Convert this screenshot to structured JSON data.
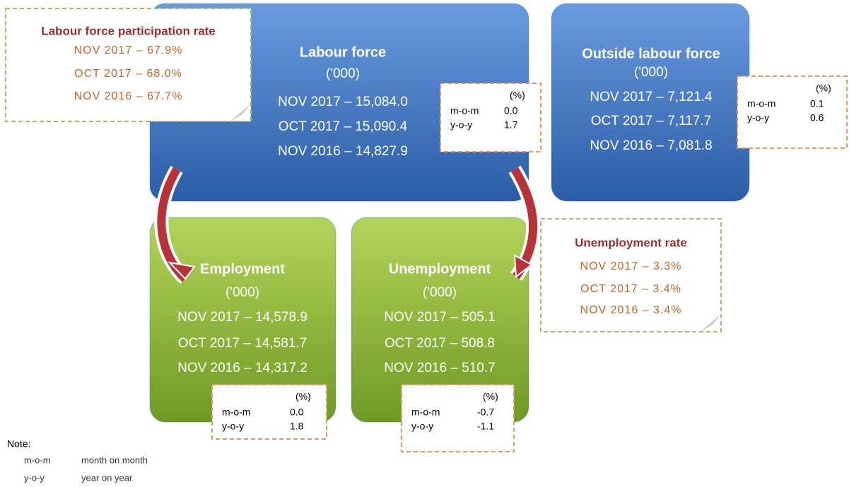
{
  "participation_note": {
    "title": "Labour force participation rate",
    "lines": [
      "NOV 2017 – 67.9%",
      "OCT 2017 – 68.0%",
      "NOV 2016 – 67.7%"
    ]
  },
  "boxes": [
    {
      "title": "Labour force",
      "unit": "('000)",
      "lines": [
        "NOV 2017 – 15,084.0",
        "OCT 2017 – 15,090.4",
        "NOV 2016 – 14,827.9"
      ],
      "change": {
        "header": "(%)",
        "rows": [
          [
            "m-o-m",
            "0.0"
          ],
          [
            "y-o-y",
            "1.7"
          ]
        ]
      }
    },
    {
      "title": "Outside labour force",
      "unit": "('000)",
      "lines": [
        "NOV 2017 – 7,121.4",
        "OCT 2017 – 7,117.7",
        "NOV 2016 – 7,081.8"
      ],
      "change": {
        "header": "(%)",
        "rows": [
          [
            "m-o-m",
            "0.1"
          ],
          [
            "y-o-y",
            "0.6"
          ]
        ]
      }
    },
    {
      "title": "Employment",
      "unit": "('000)",
      "lines": [
        "NOV 2017 – 14,578.9",
        "OCT 2017 – 14,581.7",
        "NOV 2016 – 14,317.2"
      ],
      "change": {
        "header": "(%)",
        "rows": [
          [
            "m-o-m",
            "0.0"
          ],
          [
            "y-o-y",
            "1.8"
          ]
        ]
      }
    },
    {
      "title": "Unemployment",
      "unit": "('000)",
      "lines": [
        "NOV 2017 – 505.1",
        "OCT 2017 – 508.8",
        "NOV 2016 – 510.7"
      ],
      "change": {
        "header": "(%)",
        "rows": [
          [
            "m-o-m",
            "-0.7"
          ],
          [
            "y-o-y",
            "-1.1"
          ]
        ]
      }
    }
  ],
  "unemployment_note": {
    "title": "Unemployment rate",
    "lines": [
      "NOV 2017 – 3.3%",
      "OCT 2017 – 3.4%",
      "NOV 2016 – 3.4%"
    ]
  },
  "legend": {
    "title": "Note:",
    "rows": [
      [
        "m-o-m",
        "month on month"
      ],
      [
        "y-o-y",
        "year on year"
      ]
    ]
  }
}
